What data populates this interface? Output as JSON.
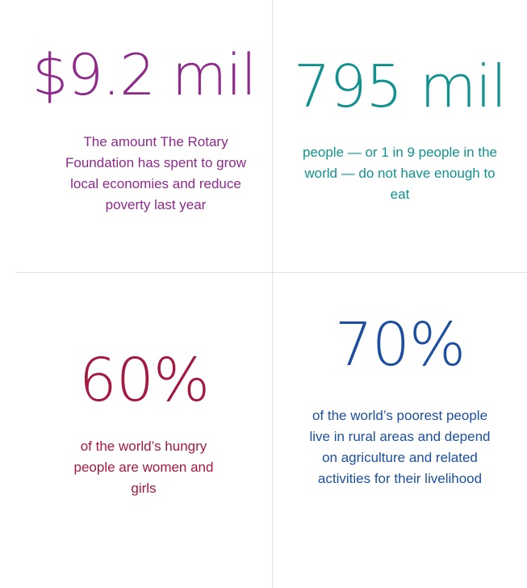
{
  "colors": {
    "purple": "#8e2a8b",
    "teal": "#12918f",
    "crimson": "#a3193f",
    "blue": "#1c4fa0",
    "divider": "#e2e2e2"
  },
  "stats": [
    {
      "value": "$9.2 mil",
      "description": "The amount The Rotary Foundation has spent to grow local economies and reduce poverty last year"
    },
    {
      "value": "795 mil",
      "description": "people — or 1 in 9 people in the world — do not have enough to eat"
    },
    {
      "value": "60%",
      "description": "of the world’s hungry people are women and girls"
    },
    {
      "value": "70%",
      "description": "of the world’s poorest people live in rural areas and depend on agriculture and related activities for their livelihood"
    }
  ]
}
